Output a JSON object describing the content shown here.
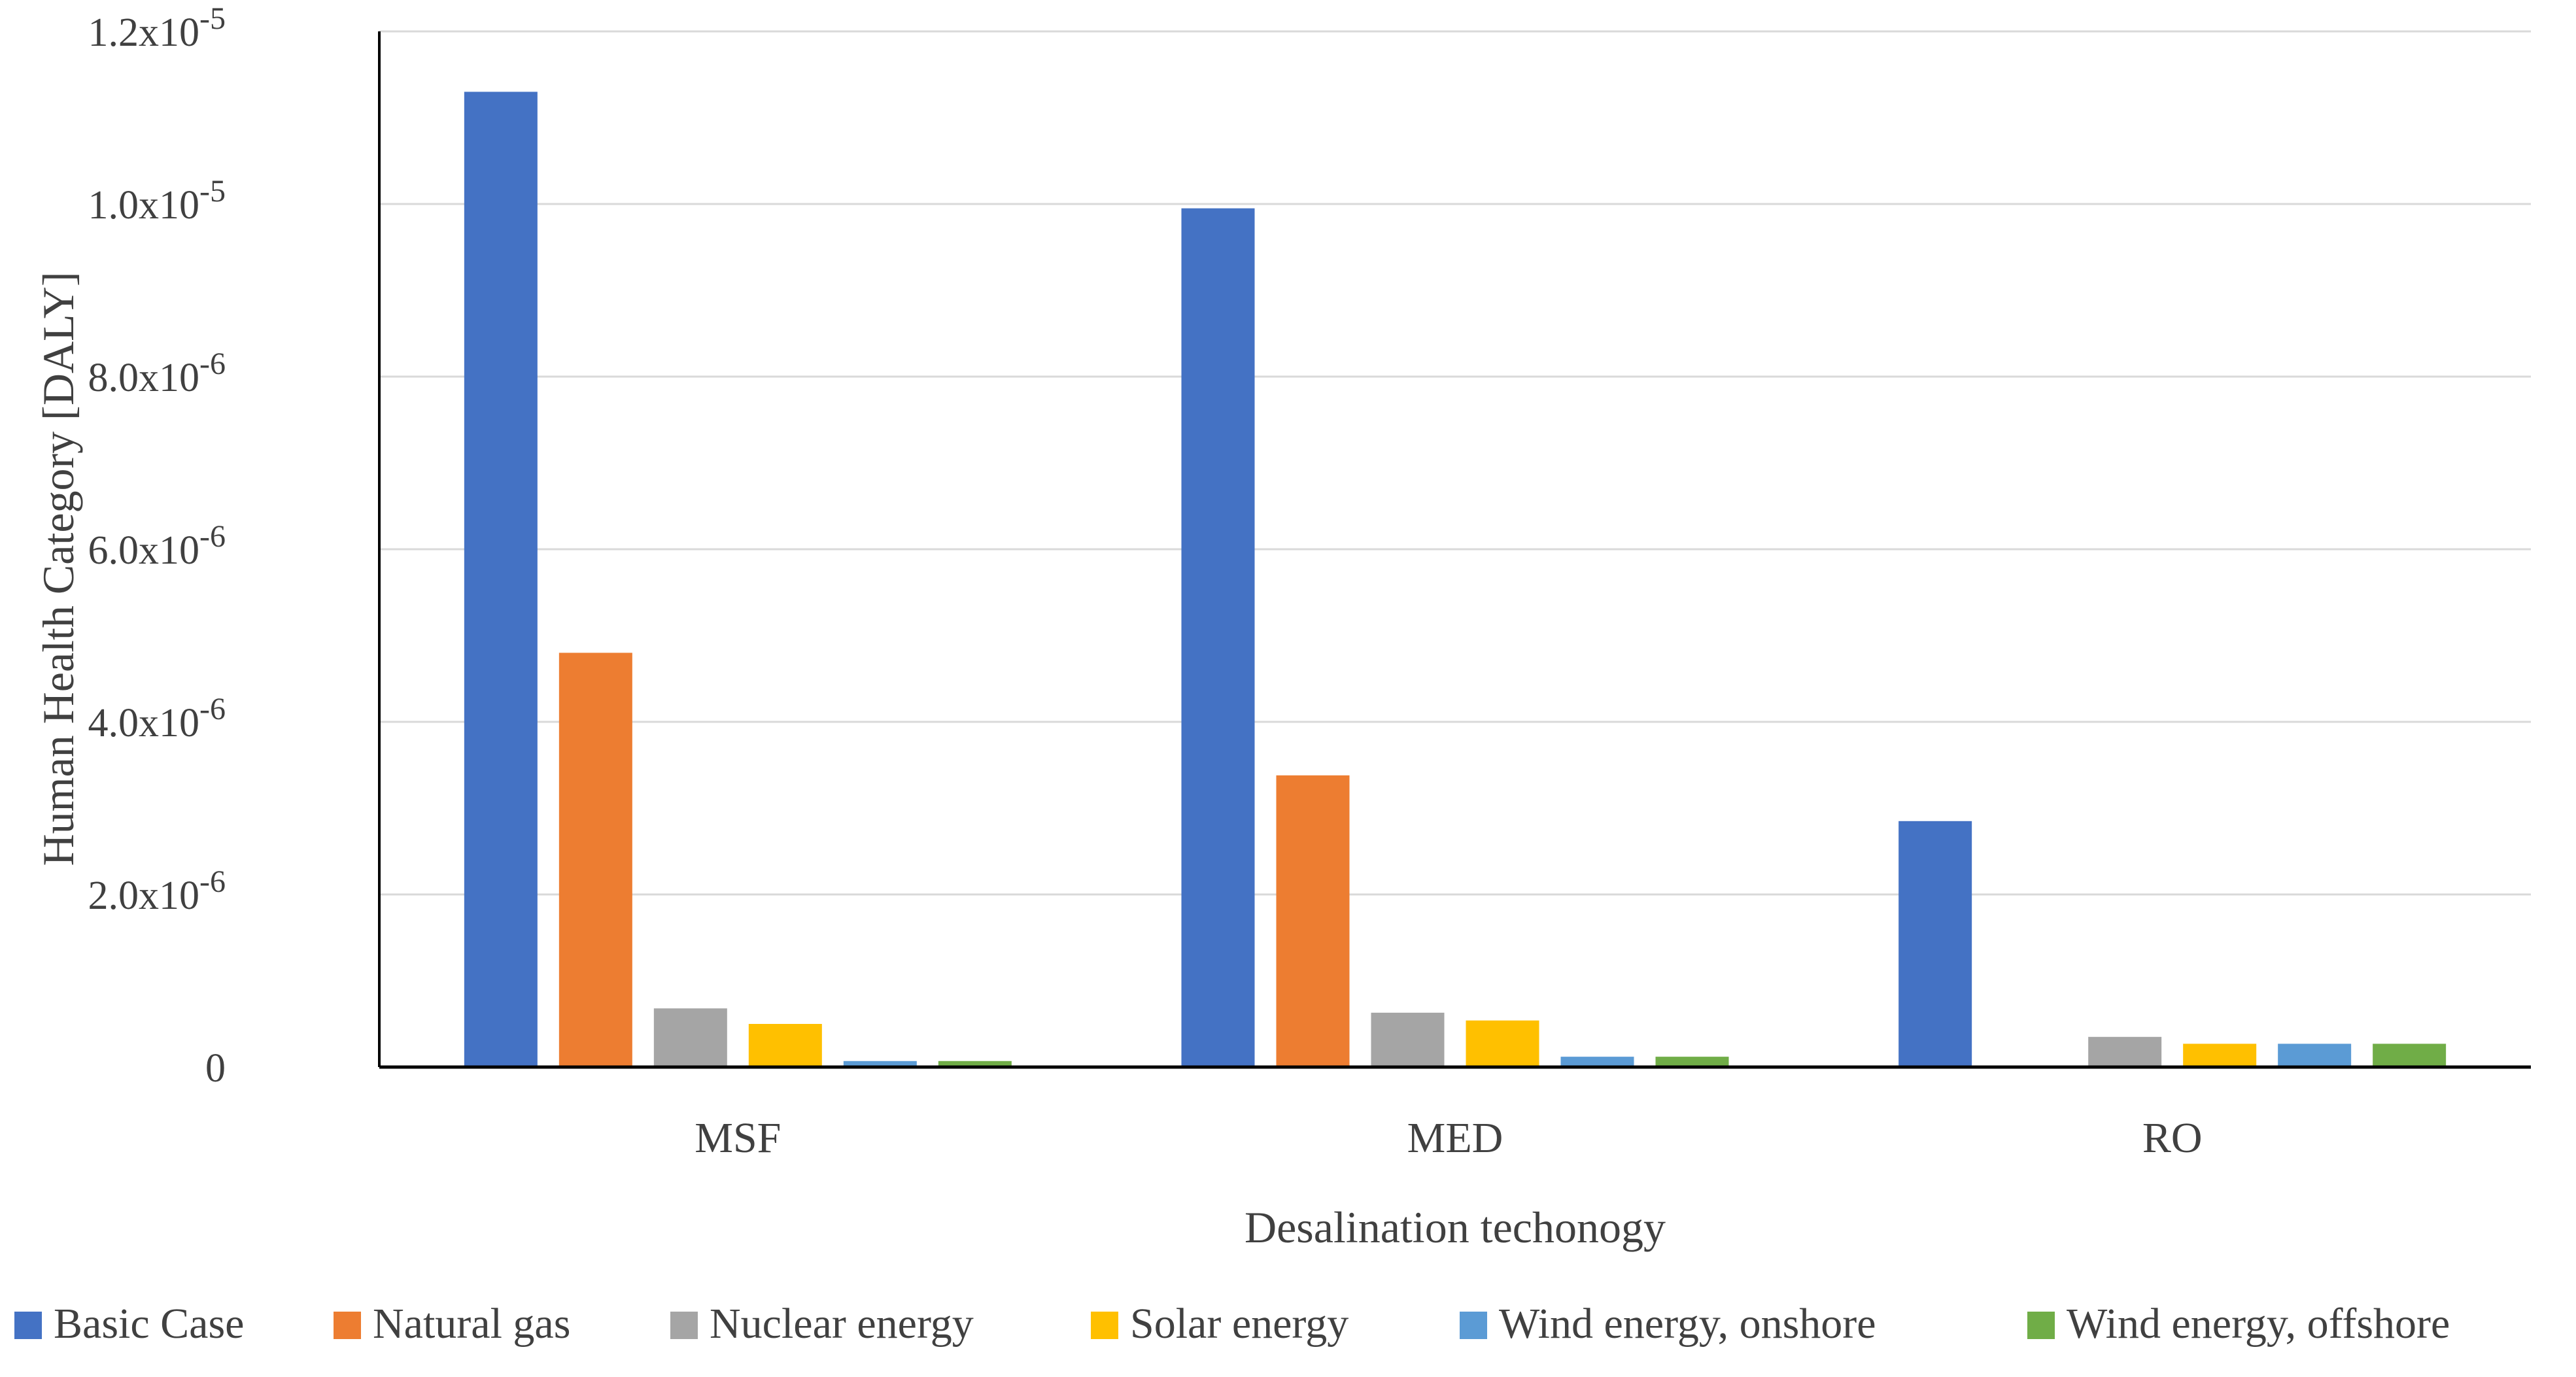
{
  "chart_data": {
    "type": "bar",
    "title": "",
    "xlabel": "Desalination techonogy",
    "ylabel": "Human Health Category [DALY]",
    "categories": [
      "MSF",
      "MED",
      "RO"
    ],
    "ylim": [
      0,
      1.2e-05
    ],
    "grid": true,
    "legend_position": "bottom",
    "y_ticks": [
      {
        "value": 0,
        "label": "0",
        "exp": ""
      },
      {
        "value": 2e-06,
        "label": "2.0x10",
        "exp": "-6"
      },
      {
        "value": 4e-06,
        "label": "4.0x10",
        "exp": "-6"
      },
      {
        "value": 6e-06,
        "label": "6.0x10",
        "exp": "-6"
      },
      {
        "value": 8e-06,
        "label": "8.0x10",
        "exp": "-6"
      },
      {
        "value": 1e-05,
        "label": "1.0x10",
        "exp": "-5"
      },
      {
        "value": 1.2e-05,
        "label": "1.2x10",
        "exp": "-5"
      }
    ],
    "series": [
      {
        "name": "Basic Case",
        "color": "#4472C4",
        "values": [
          1.13e-05,
          9.95e-06,
          2.85e-06
        ]
      },
      {
        "name": "Natural gas",
        "color": "#ED7D31",
        "values": [
          4.8e-06,
          3.38e-06,
          0
        ]
      },
      {
        "name": "Nuclear energy",
        "color": "#A5A5A5",
        "values": [
          6.8e-07,
          6.3e-07,
          3.5e-07
        ]
      },
      {
        "name": "Solar energy",
        "color": "#FFC000",
        "values": [
          5e-07,
          5.4e-07,
          2.7e-07
        ]
      },
      {
        "name": "Wind energy, onshore",
        "color": "#5B9BD5",
        "values": [
          7e-08,
          1.2e-07,
          2.7e-07
        ]
      },
      {
        "name": "Wind energy, offshore",
        "color": "#70AD47",
        "values": [
          7e-08,
          1.2e-07,
          2.7e-07
        ]
      }
    ]
  }
}
